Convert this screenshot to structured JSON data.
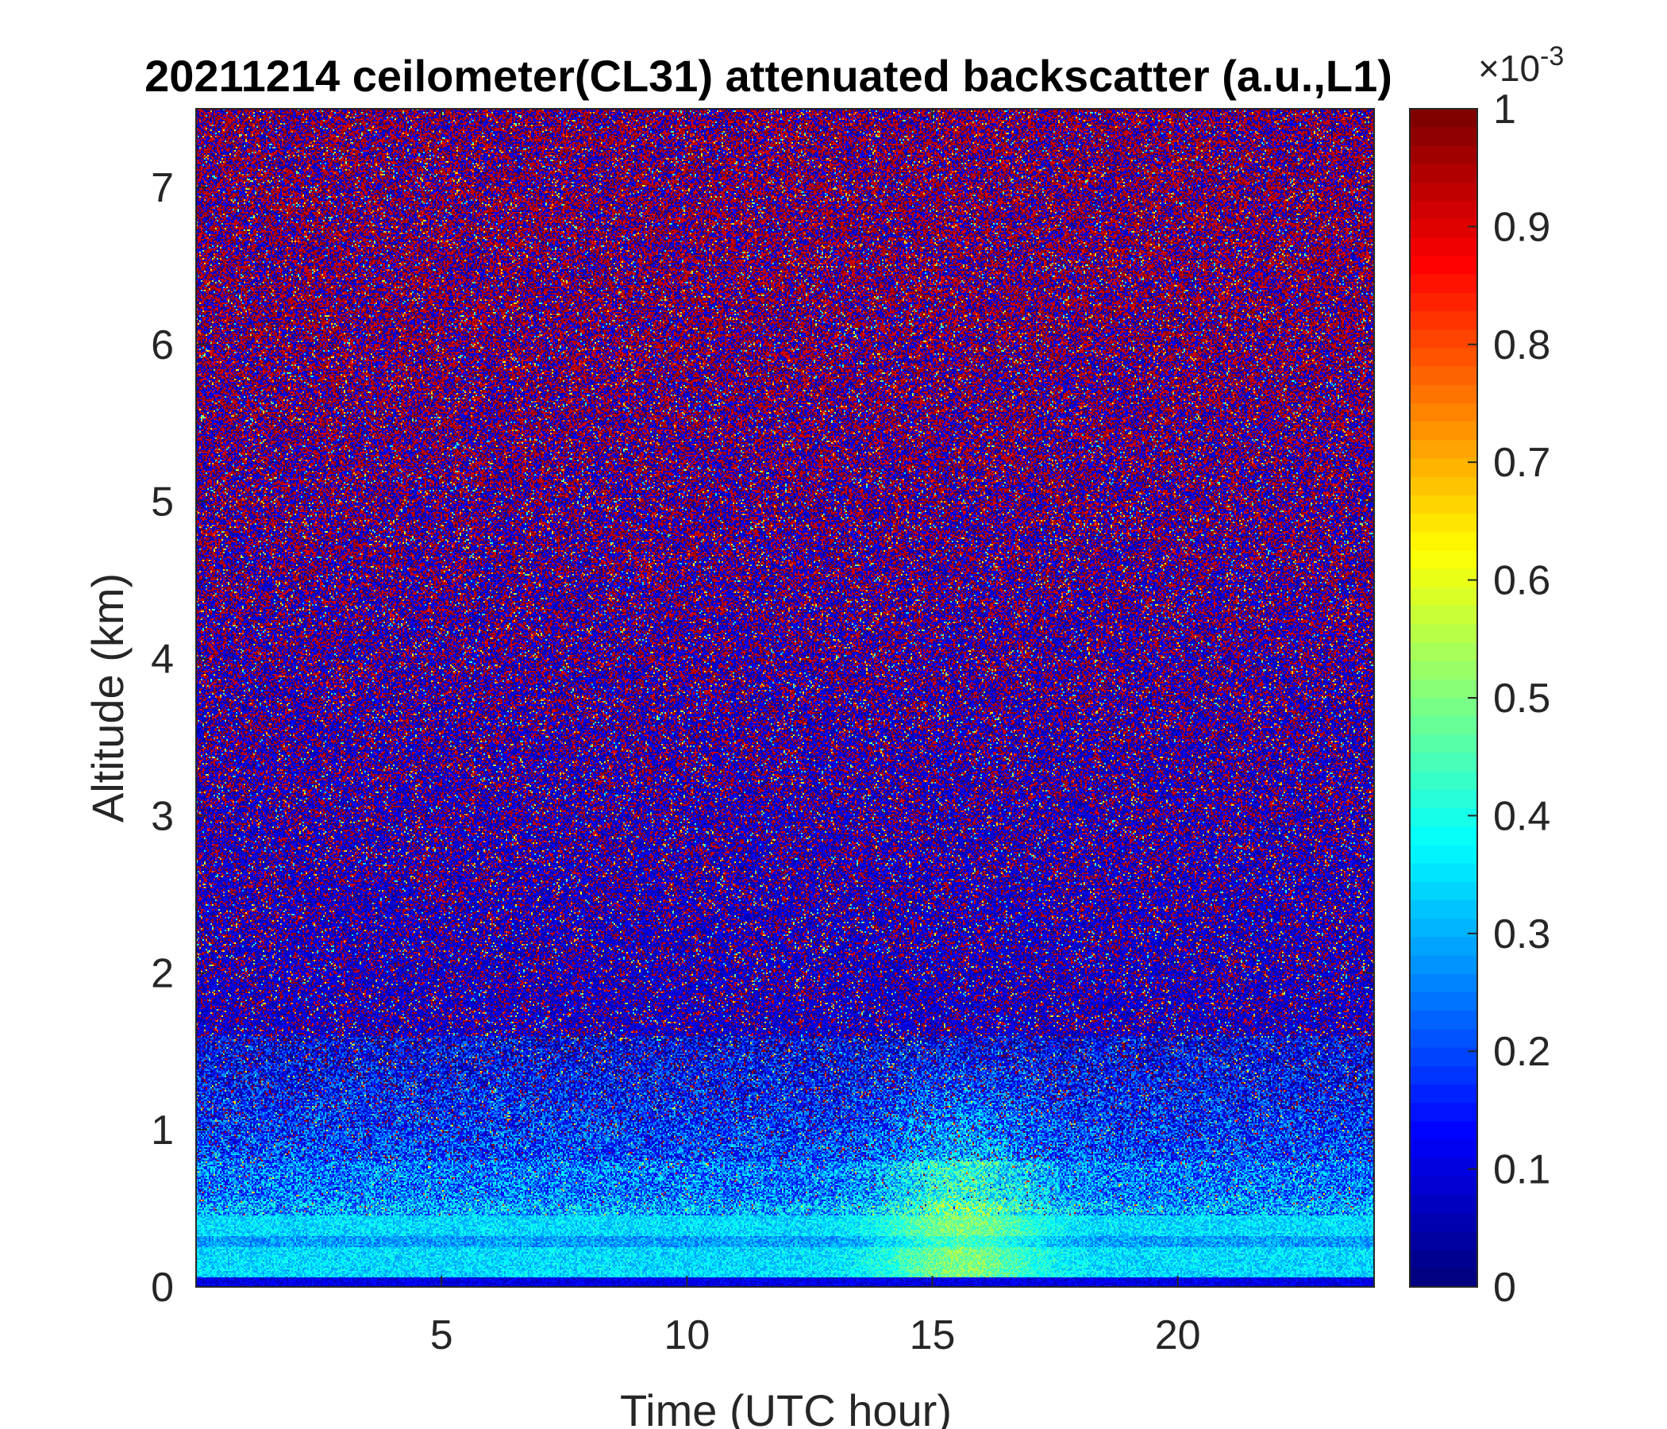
{
  "chart_data": {
    "type": "heatmap",
    "title": "20211214 ceilometer(CL31) attenuated backscatter (a.u.,L1)",
    "xlabel": "Time (UTC hour)",
    "ylabel": "Altitude (km)",
    "xlim": [
      0,
      24
    ],
    "ylim": [
      0,
      7.5
    ],
    "x_ticks": [
      5,
      10,
      15,
      20
    ],
    "y_ticks": [
      0,
      1,
      2,
      3,
      4,
      5,
      6,
      7
    ],
    "colorbar": {
      "ticks": [
        "0",
        "0.1",
        "0.2",
        "0.3",
        "0.4",
        "0.5",
        "0.6",
        "0.7",
        "0.8",
        "0.9",
        "1"
      ],
      "range": [
        0,
        1
      ],
      "exponent_base": "×10",
      "exponent": "-3",
      "colormap": "jet"
    },
    "grid": false,
    "structure": [
      {
        "feature": "near-surface aerosol layer",
        "altitude_km": [
          0,
          0.45
        ],
        "value": 0.35
      },
      {
        "feature": "enhanced backscatter plume",
        "time_hour": [
          13.5,
          17.5
        ],
        "altitude_km": [
          0,
          1.0
        ],
        "value": 0.5
      },
      {
        "feature": "noisy free troposphere",
        "altitude_km": [
          1.5,
          7.5
        ],
        "value": "random 0-1"
      }
    ]
  }
}
